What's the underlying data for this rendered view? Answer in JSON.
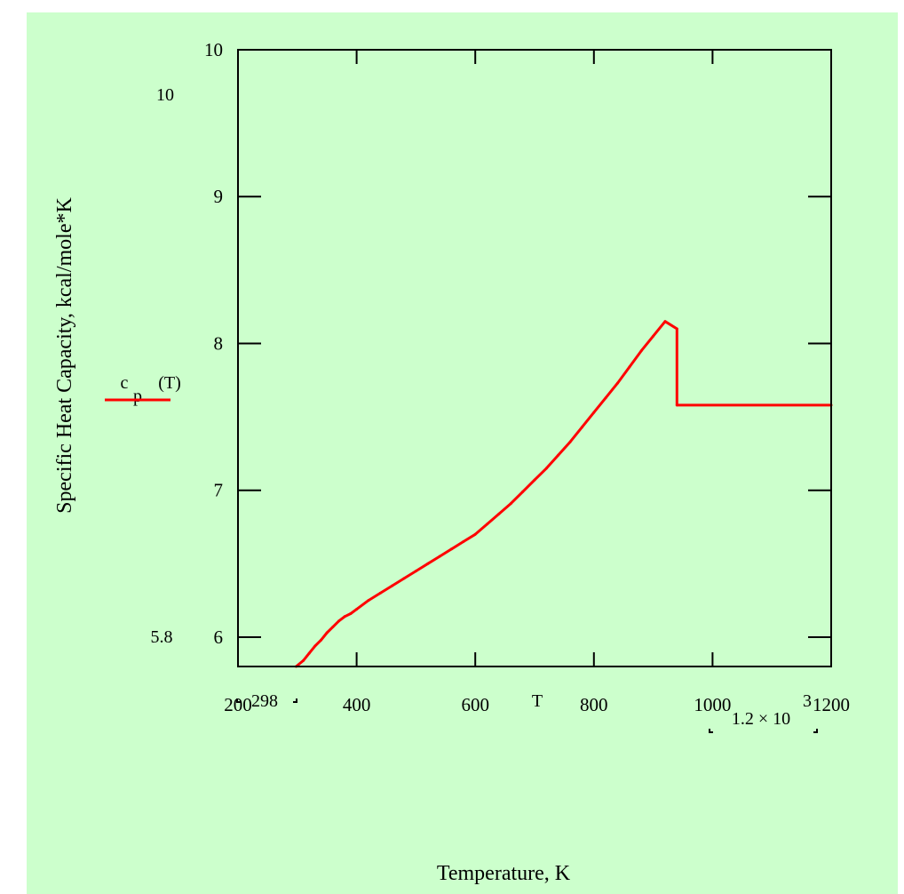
{
  "chart_data": {
    "type": "line",
    "title": "",
    "xlabel": "Temperature, K",
    "ylabel": "Specific Heat Capacity, kcal/mole*K",
    "xlim": [
      200,
      1200
    ],
    "ylim": [
      5.8,
      10
    ],
    "x_ticks": [
      200,
      400,
      600,
      800,
      1000,
      1200
    ],
    "y_ticks": [
      6,
      7,
      8,
      9,
      10
    ],
    "grid": false,
    "legend": {
      "position": "left",
      "label_main": "c",
      "label_sub": "p",
      "label_arg": "(T)"
    },
    "x_variable_label": "T",
    "x_range_min_label": "298",
    "x_range_max_mantissa": "1.2 × 10",
    "x_range_max_exponent": "3",
    "y_range_max_label": "10",
    "y_range_min_label": "5.8",
    "series": [
      {
        "name": "c p (T)",
        "color": "#ff0000",
        "x": [
          298,
          310,
          320,
          330,
          340,
          350,
          360,
          370,
          380,
          390,
          400,
          420,
          440,
          460,
          480,
          500,
          520,
          540,
          560,
          580,
          600,
          620,
          640,
          660,
          680,
          700,
          720,
          740,
          760,
          780,
          800,
          820,
          840,
          860,
          880,
          900,
          920,
          940,
          940,
          1200
        ],
        "y": [
          5.8,
          5.84,
          5.89,
          5.94,
          5.98,
          6.03,
          6.07,
          6.11,
          6.14,
          6.16,
          6.19,
          6.25,
          6.3,
          6.35,
          6.4,
          6.45,
          6.5,
          6.55,
          6.6,
          6.65,
          6.7,
          6.77,
          6.84,
          6.91,
          6.99,
          7.07,
          7.15,
          7.24,
          7.33,
          7.43,
          7.53,
          7.63,
          7.73,
          7.84,
          7.95,
          8.05,
          8.15,
          8.1,
          7.58,
          7.58
        ]
      }
    ]
  }
}
